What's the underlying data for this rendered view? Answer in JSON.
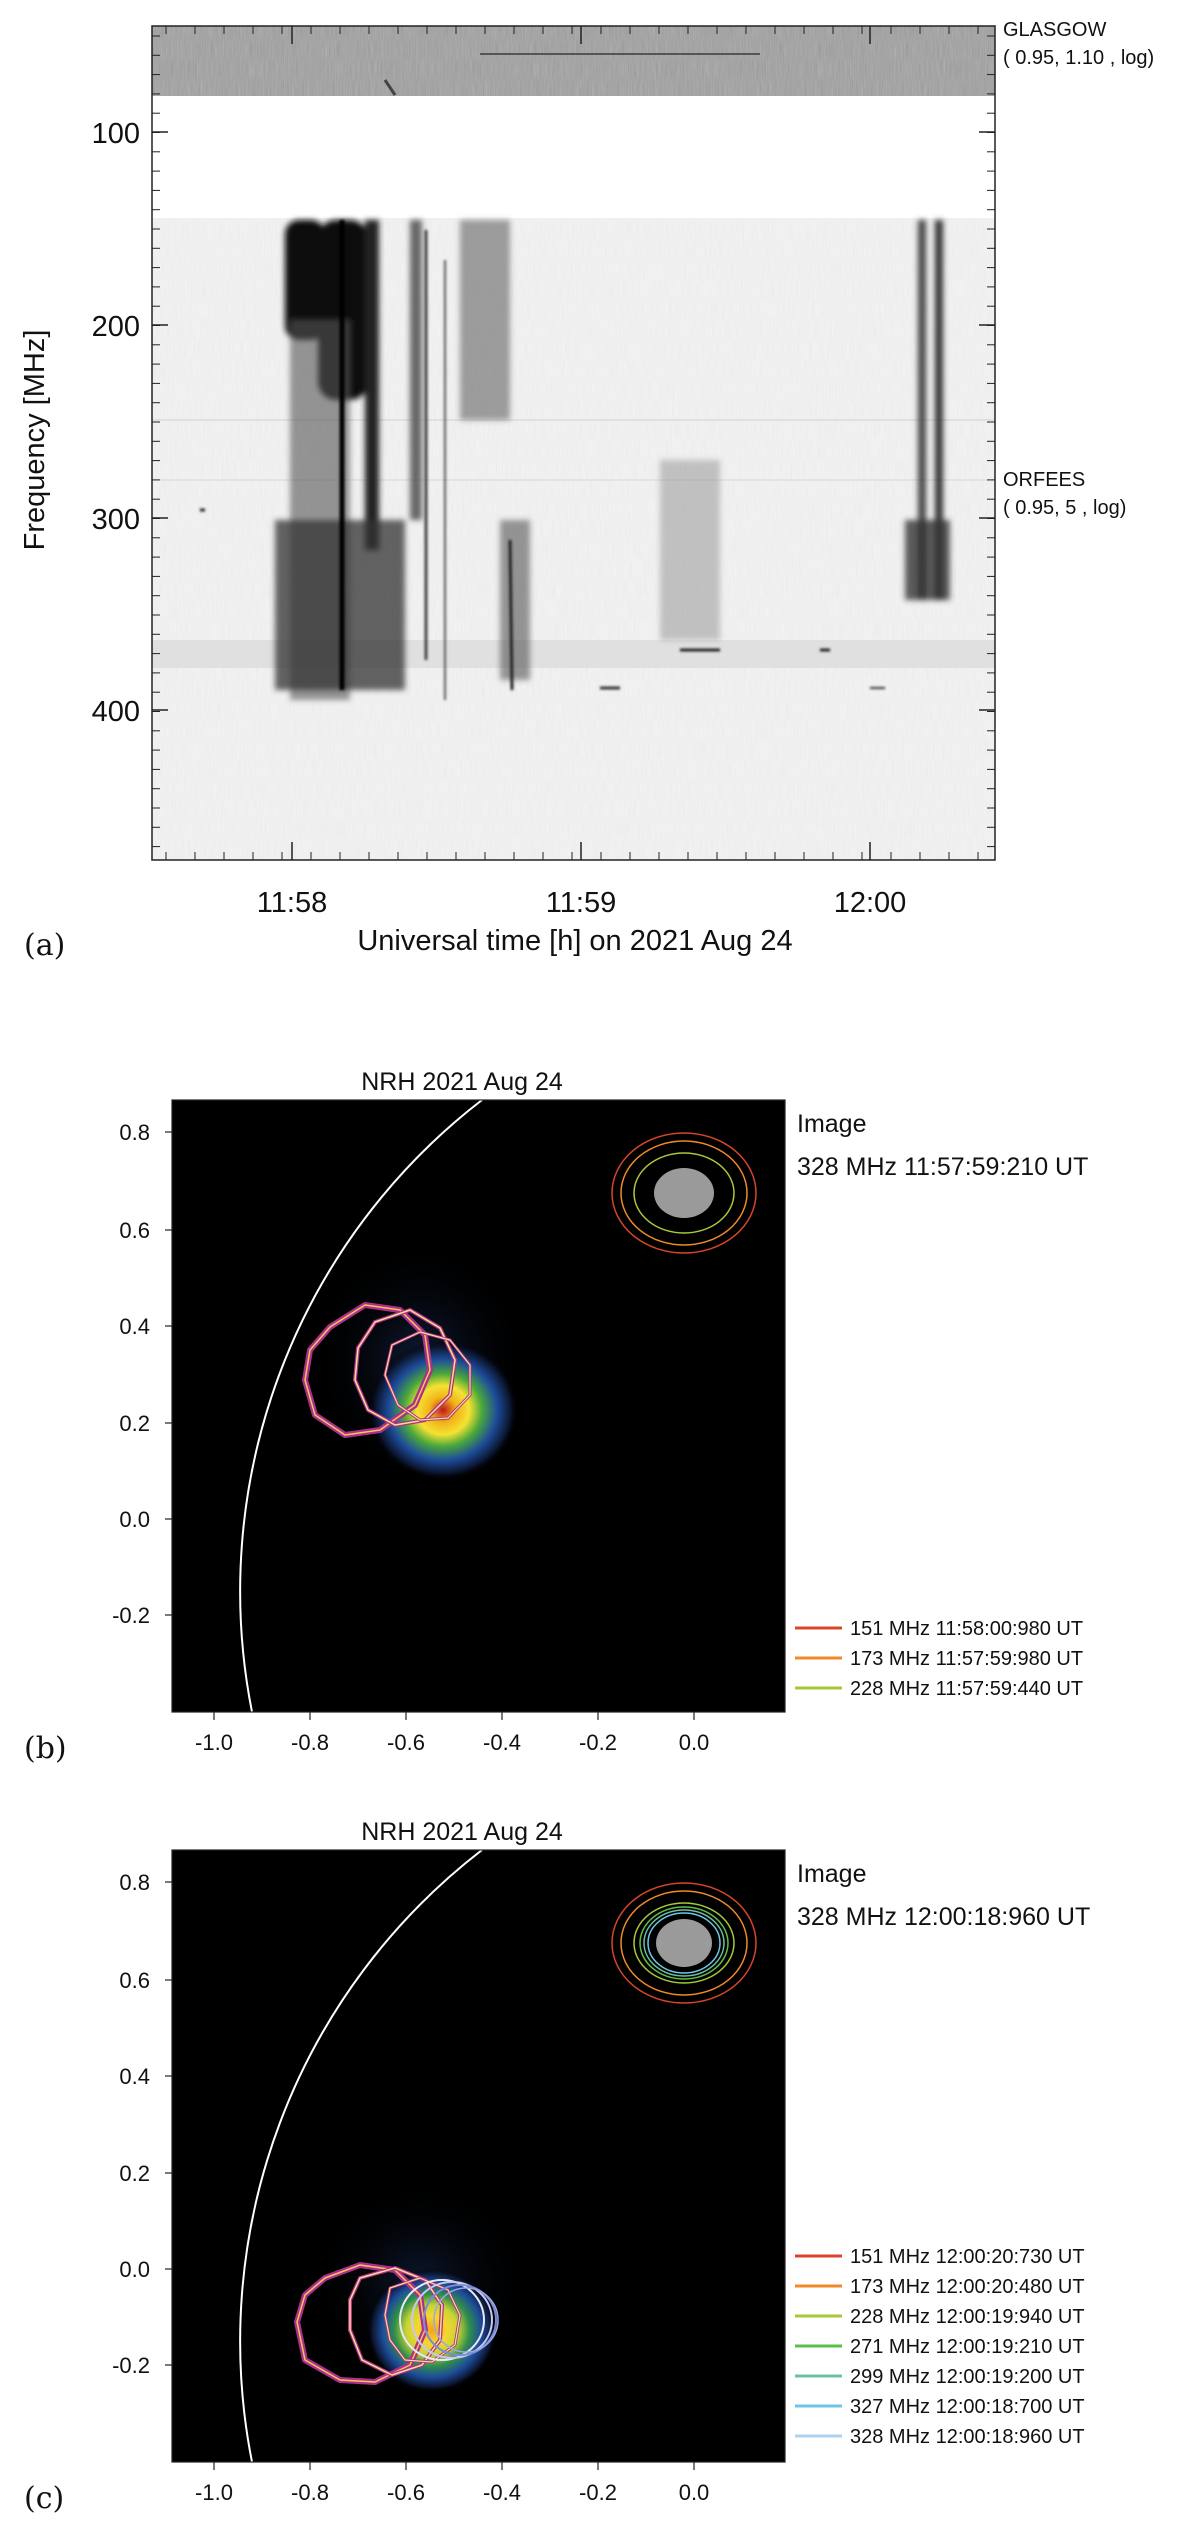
{
  "figure": {
    "panels": [
      {
        "tag": "(a)",
        "kind": "dynamic-spectrum",
        "xlabel": "Universal time [h] on 2021 Aug 24",
        "ylabel": "Frequency [MHz]",
        "x_ticks": [
          "11:58",
          "11:59",
          "12:00"
        ],
        "y_ticks": [
          "100",
          "200",
          "300",
          "400"
        ],
        "instruments": [
          {
            "name": "GLASGOW",
            "params": "(  0.95,   1.10 , log)"
          },
          {
            "name": "ORFEES",
            "params": "(  0.95,      5 , log)"
          }
        ]
      },
      {
        "tag": "(b)",
        "kind": "radio-image",
        "title": "NRH 2021 Aug 24",
        "image_label": "Image",
        "image_freq_time": "328 MHz 11:57:59:210 UT",
        "x_ticks": [
          "-1.0",
          "-0.8",
          "-0.6",
          "-0.4",
          "-0.2",
          "0.0"
        ],
        "y_ticks": [
          "0.8",
          "0.6",
          "0.4",
          "0.2",
          "0.0",
          "-0.2"
        ],
        "legend": [
          {
            "label": "151 MHz 11:58:00:980 UT",
            "color": "#d9442a"
          },
          {
            "label": "173 MHz 11:57:59:980 UT",
            "color": "#f08a2a"
          },
          {
            "label": "228 MHz 11:57:59:440 UT",
            "color": "#a8c83a"
          }
        ]
      },
      {
        "tag": "(c)",
        "kind": "radio-image",
        "title": "NRH 2021 Aug 24",
        "image_label": "Image",
        "image_freq_time": "328 MHz 12:00:18:960 UT",
        "x_ticks": [
          "-1.0",
          "-0.8",
          "-0.6",
          "-0.4",
          "-0.2",
          "0.0"
        ],
        "y_ticks": [
          "0.8",
          "0.6",
          "0.4",
          "0.2",
          "0.0",
          "-0.2"
        ],
        "legend": [
          {
            "label": "151 MHz 12:00:20:730 UT",
            "color": "#d9442a"
          },
          {
            "label": "173 MHz 12:00:20:480 UT",
            "color": "#f08a2a"
          },
          {
            "label": "228 MHz 12:00:19:940 UT",
            "color": "#a8c83a"
          },
          {
            "label": "271 MHz 12:00:19:210 UT",
            "color": "#5cbf4a"
          },
          {
            "label": "299 MHz 12:00:19:200 UT",
            "color": "#6fc0a0"
          },
          {
            "label": "327 MHz 12:00:18:700 UT",
            "color": "#6ec6e6"
          },
          {
            "label": "328 MHz 12:00:18:960 UT",
            "color": "#a9d3ea"
          }
        ]
      }
    ]
  }
}
